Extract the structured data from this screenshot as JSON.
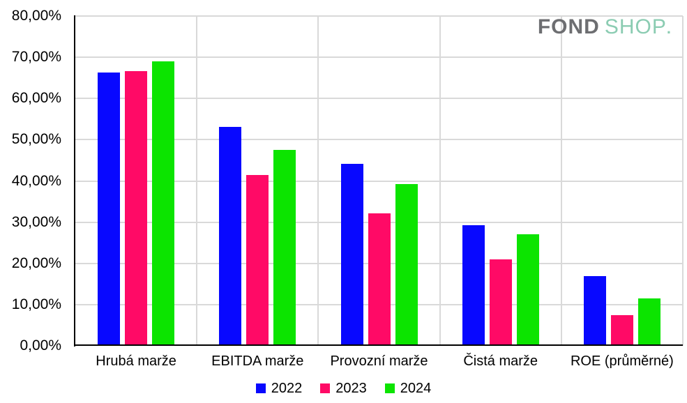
{
  "logo": {
    "fond": "FOND",
    "shop": "SHOP",
    "dot": "."
  },
  "colors": {
    "logo_fond": "#6d6e71",
    "logo_shop": "#8bccb2",
    "grid": "#d9d9d9",
    "axis": "#000000",
    "background": "#ffffff",
    "text": "#000000"
  },
  "chart_data": {
    "type": "bar",
    "title": "",
    "categories": [
      "Hrubá marže",
      "EBITDA marže",
      "Provozní marže",
      "Čistá marže",
      "ROE (průměrné)"
    ],
    "series": [
      {
        "name": "2022",
        "color": "#0808ff",
        "values": [
          66.3,
          53.1,
          44.2,
          29.2,
          16.9
        ]
      },
      {
        "name": "2023",
        "color": "#ff0a66",
        "values": [
          66.7,
          41.4,
          32.2,
          21.0,
          7.4
        ]
      },
      {
        "name": "2024",
        "color": "#0ce400",
        "values": [
          69.0,
          47.6,
          39.3,
          27.1,
          11.5
        ]
      }
    ],
    "ylabel": "",
    "xlabel": "",
    "ylim": [
      0,
      80
    ],
    "y_tick_step": 10,
    "y_tick_labels": [
      "0,00%",
      "10,00%",
      "20,00%",
      "30,00%",
      "40,00%",
      "50,00%",
      "60,00%",
      "70,00%",
      "80,00%"
    ],
    "value_format": "percent-czech",
    "grid": true,
    "legend_position": "bottom"
  }
}
